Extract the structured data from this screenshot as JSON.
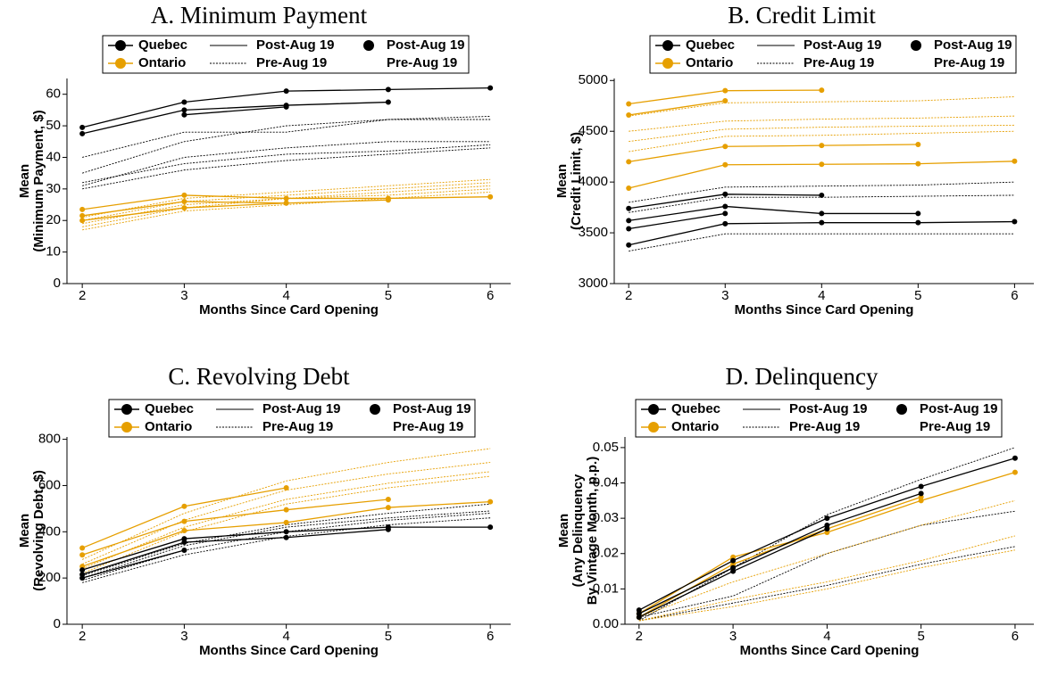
{
  "chart_data": [
    {
      "type": "line",
      "title": "A. Minimum Payment",
      "x_label": "Months Since Card Opening",
      "y_label": [
        "Mean",
        "(Minimum Payment, $)"
      ],
      "x": [
        2,
        3,
        4,
        5,
        6
      ],
      "xlim": [
        1.85,
        6.2
      ],
      "xticks": [
        2,
        3,
        4,
        5,
        6
      ],
      "ylim": [
        0,
        65
      ],
      "yticks": [
        0,
        10,
        20,
        30,
        40,
        50,
        60
      ],
      "legend": {
        "province": [
          {
            "label": "Quebec",
            "color": "#000000"
          },
          {
            "label": "Ontario",
            "color": "#e69f00"
          }
        ],
        "line_style": [
          {
            "label": "Post-Aug 19",
            "dash": "solid"
          },
          {
            "label": "Pre-Aug 19",
            "dash": "dotted"
          }
        ],
        "point": [
          {
            "label": "Post-Aug 19",
            "marker": true
          },
          {
            "label": "Pre-Aug 19",
            "marker": false
          }
        ]
      },
      "series": [
        {
          "color": "#000000",
          "dash": "dotted",
          "markers": false,
          "values": [
            32,
            38,
            41,
            42,
            44
          ]
        },
        {
          "color": "#000000",
          "dash": "dotted",
          "markers": false,
          "values": [
            30,
            36,
            39,
            41,
            43
          ]
        },
        {
          "color": "#000000",
          "dash": "dotted",
          "markers": false,
          "values": [
            40,
            48,
            48,
            52,
            53
          ]
        },
        {
          "color": "#000000",
          "dash": "dotted",
          "markers": false,
          "values": [
            35,
            45,
            50,
            52,
            52
          ]
        },
        {
          "color": "#000000",
          "dash": "dotted",
          "markers": false,
          "values": [
            31,
            40,
            43,
            45,
            45
          ]
        },
        {
          "color": "#e69f00",
          "dash": "dotted",
          "markers": false,
          "values": [
            18,
            24,
            27,
            29,
            31
          ]
        },
        {
          "color": "#e69f00",
          "dash": "dotted",
          "markers": false,
          "values": [
            19,
            25,
            27,
            28,
            30
          ]
        },
        {
          "color": "#e69f00",
          "dash": "dotted",
          "markers": false,
          "values": [
            20,
            26,
            28,
            30,
            32
          ]
        },
        {
          "color": "#e69f00",
          "dash": "dotted",
          "markers": false,
          "values": [
            17,
            23,
            25,
            27,
            29
          ]
        },
        {
          "color": "#e69f00",
          "dash": "dotted",
          "markers": false,
          "values": [
            21,
            27,
            29,
            31,
            33
          ]
        },
        {
          "color": "#000000",
          "dash": "solid",
          "markers": true,
          "values": [
            49.5,
            57.5,
            61,
            61.5,
            62
          ]
        },
        {
          "color": "#000000",
          "dash": "solid",
          "markers": true,
          "values": [
            47.5,
            55,
            56.5,
            57.5,
            null
          ]
        },
        {
          "color": "#000000",
          "dash": "solid",
          "markers": true,
          "values": [
            null,
            53.5,
            56,
            null,
            null
          ]
        },
        {
          "color": "#e69f00",
          "dash": "solid",
          "markers": true,
          "values": [
            23.5,
            28,
            27,
            27,
            27.5
          ]
        },
        {
          "color": "#e69f00",
          "dash": "solid",
          "markers": true,
          "values": [
            21.5,
            26,
            25.5,
            26.5,
            null
          ]
        },
        {
          "color": "#e69f00",
          "dash": "solid",
          "markers": true,
          "values": [
            20,
            24,
            25.5,
            null,
            null
          ]
        }
      ]
    },
    {
      "type": "line",
      "title": "B. Credit Limit",
      "x_label": "Months Since Card Opening",
      "y_label": [
        "Mean",
        "(Credit Limit, $)"
      ],
      "x": [
        2,
        3,
        4,
        5,
        6
      ],
      "xlim": [
        1.85,
        6.2
      ],
      "xticks": [
        2,
        3,
        4,
        5,
        6
      ],
      "ylim": [
        3000,
        5020
      ],
      "yticks": [
        3000,
        3500,
        4000,
        4500,
        5000
      ],
      "legend": {
        "province": [
          {
            "label": "Quebec",
            "color": "#000000"
          },
          {
            "label": "Ontario",
            "color": "#e69f00"
          }
        ],
        "line_style": [
          {
            "label": "Post-Aug 19",
            "dash": "solid"
          },
          {
            "label": "Pre-Aug 19",
            "dash": "dotted"
          }
        ],
        "point": [
          {
            "label": "Post-Aug 19",
            "marker": true
          },
          {
            "label": "Pre-Aug 19",
            "marker": false
          }
        ]
      },
      "series": [
        {
          "color": "#000000",
          "dash": "dotted",
          "markers": false,
          "values": [
            3800,
            3950,
            3960,
            3970,
            4000
          ]
        },
        {
          "color": "#000000",
          "dash": "dotted",
          "markers": false,
          "values": [
            3700,
            3850,
            3850,
            3860,
            3870
          ]
        },
        {
          "color": "#000000",
          "dash": "dotted",
          "markers": false,
          "values": [
            3320,
            3490,
            3490,
            3490,
            3490
          ]
        },
        {
          "color": "#e69f00",
          "dash": "dotted",
          "markers": false,
          "values": [
            4500,
            4600,
            4620,
            4630,
            4650
          ]
        },
        {
          "color": "#e69f00",
          "dash": "dotted",
          "markers": false,
          "values": [
            4400,
            4520,
            4540,
            4550,
            4560
          ]
        },
        {
          "color": "#e69f00",
          "dash": "dotted",
          "markers": false,
          "values": [
            4650,
            4780,
            4790,
            4800,
            4840
          ]
        },
        {
          "color": "#e69f00",
          "dash": "dotted",
          "markers": false,
          "values": [
            4300,
            4450,
            4460,
            4480,
            4500
          ]
        },
        {
          "color": "#e69f00",
          "dash": "solid",
          "markers": true,
          "values": [
            4770,
            4900,
            4905,
            null,
            null
          ]
        },
        {
          "color": "#e69f00",
          "dash": "solid",
          "markers": true,
          "values": [
            4660,
            4800,
            null,
            null,
            null
          ]
        },
        {
          "color": "#e69f00",
          "dash": "solid",
          "markers": true,
          "values": [
            4200,
            4350,
            4360,
            4370,
            null
          ]
        },
        {
          "color": "#e69f00",
          "dash": "solid",
          "markers": true,
          "values": [
            3940,
            4170,
            4175,
            4180,
            4205
          ]
        },
        {
          "color": "#000000",
          "dash": "solid",
          "markers": true,
          "values": [
            3740,
            3880,
            3870,
            null,
            null
          ]
        },
        {
          "color": "#000000",
          "dash": "solid",
          "markers": true,
          "values": [
            3620,
            3760,
            3690,
            3690,
            null
          ]
        },
        {
          "color": "#000000",
          "dash": "solid",
          "markers": true,
          "values": [
            3540,
            3690,
            null,
            null,
            null
          ]
        },
        {
          "color": "#000000",
          "dash": "solid",
          "markers": true,
          "values": [
            3380,
            3590,
            3600,
            3600,
            3610
          ]
        }
      ]
    },
    {
      "type": "line",
      "title": "C. Revolving Debt",
      "x_label": "Months Since Card Opening",
      "y_label": [
        "Mean",
        "(Revolving Debt, $)"
      ],
      "x": [
        2,
        3,
        4,
        5,
        6
      ],
      "xlim": [
        1.85,
        6.2
      ],
      "xticks": [
        2,
        3,
        4,
        5,
        6
      ],
      "ylim": [
        0,
        810
      ],
      "yticks": [
        0,
        200,
        400,
        600,
        800
      ],
      "legend": {
        "province": [
          {
            "label": "Quebec",
            "color": "#000000"
          },
          {
            "label": "Ontario",
            "color": "#e69f00"
          }
        ],
        "line_style": [
          {
            "label": "Post-Aug 19",
            "dash": "solid"
          },
          {
            "label": "Pre-Aug 19",
            "dash": "dotted"
          }
        ],
        "point": [
          {
            "label": "Post-Aug 19",
            "marker": true
          },
          {
            "label": "Pre-Aug 19",
            "marker": false
          }
        ]
      },
      "series": [
        {
          "color": "#e69f00",
          "dash": "dotted",
          "markers": false,
          "values": [
            280,
            480,
            620,
            700,
            760
          ]
        },
        {
          "color": "#e69f00",
          "dash": "dotted",
          "markers": false,
          "values": [
            260,
            450,
            580,
            650,
            700
          ]
        },
        {
          "color": "#e69f00",
          "dash": "dotted",
          "markers": false,
          "values": [
            240,
            420,
            540,
            610,
            660
          ]
        },
        {
          "color": "#e69f00",
          "dash": "dotted",
          "markers": false,
          "values": [
            220,
            400,
            520,
            590,
            640
          ]
        },
        {
          "color": "#000000",
          "dash": "dotted",
          "markers": false,
          "values": [
            200,
            340,
            420,
            460,
            490
          ]
        },
        {
          "color": "#000000",
          "dash": "dotted",
          "markers": false,
          "values": [
            190,
            320,
            400,
            450,
            480
          ]
        },
        {
          "color": "#000000",
          "dash": "dotted",
          "markers": false,
          "values": [
            210,
            350,
            430,
            480,
            520
          ]
        },
        {
          "color": "#000000",
          "dash": "dotted",
          "markers": false,
          "values": [
            180,
            300,
            380,
            430,
            460
          ]
        },
        {
          "color": "#e69f00",
          "dash": "solid",
          "markers": true,
          "values": [
            330,
            510,
            590,
            null,
            null
          ]
        },
        {
          "color": "#e69f00",
          "dash": "solid",
          "markers": true,
          "values": [
            300,
            445,
            495,
            540,
            null
          ]
        },
        {
          "color": "#e69f00",
          "dash": "solid",
          "markers": true,
          "values": [
            250,
            405,
            440,
            505,
            530
          ]
        },
        {
          "color": "#000000",
          "dash": "solid",
          "markers": true,
          "values": [
            235,
            370,
            400,
            420,
            420
          ]
        },
        {
          "color": "#000000",
          "dash": "solid",
          "markers": true,
          "values": [
            215,
            355,
            375,
            410,
            null
          ]
        },
        {
          "color": "#000000",
          "dash": "solid",
          "markers": true,
          "values": [
            200,
            320,
            null,
            null,
            null
          ]
        }
      ]
    },
    {
      "type": "line",
      "title": "D. Delinquency",
      "x_label": "Months Since Card Opening",
      "y_label": [
        "Mean",
        "(Any Delinquency",
        "By Vintage Month, p.p.)"
      ],
      "x": [
        2,
        3,
        4,
        5,
        6
      ],
      "xlim": [
        1.85,
        6.2
      ],
      "xticks": [
        2,
        3,
        4,
        5,
        6
      ],
      "ylim": [
        0,
        0.053
      ],
      "yticks": [
        {
          "value": 0,
          "label": "0.00"
        },
        0.01,
        0.02,
        0.03,
        0.04,
        0.05
      ],
      "legend": {
        "province": [
          {
            "label": "Quebec",
            "color": "#000000"
          },
          {
            "label": "Ontario",
            "color": "#e69f00"
          }
        ],
        "line_style": [
          {
            "label": "Post-Aug 19",
            "dash": "solid"
          },
          {
            "label": "Pre-Aug 19",
            "dash": "dotted"
          }
        ],
        "point": [
          {
            "label": "Post-Aug 19",
            "marker": true
          },
          {
            "label": "Pre-Aug 19",
            "marker": false
          }
        ]
      },
      "series": [
        {
          "color": "#000000",
          "dash": "dotted",
          "markers": false,
          "values": [
            0.001,
            0.006,
            0.011,
            0.017,
            0.022
          ]
        },
        {
          "color": "#000000",
          "dash": "dotted",
          "markers": false,
          "values": [
            0.002,
            0.008,
            0.02,
            0.028,
            0.032
          ]
        },
        {
          "color": "#000000",
          "dash": "dotted",
          "markers": false,
          "values": [
            0.001,
            0.016,
            0.031,
            0.041,
            0.05
          ]
        },
        {
          "color": "#e69f00",
          "dash": "dotted",
          "markers": false,
          "values": [
            0.001,
            0.007,
            0.012,
            0.018,
            0.025
          ]
        },
        {
          "color": "#e69f00",
          "dash": "dotted",
          "markers": false,
          "values": [
            0.002,
            0.012,
            0.02,
            0.028,
            0.035
          ]
        },
        {
          "color": "#e69f00",
          "dash": "dotted",
          "markers": false,
          "values": [
            0.001,
            0.005,
            0.01,
            0.016,
            0.021
          ]
        },
        {
          "color": "#e69f00",
          "dash": "solid",
          "markers": true,
          "values": [
            0.003,
            0.019,
            0.026,
            0.035,
            0.043
          ]
        },
        {
          "color": "#e69f00",
          "dash": "solid",
          "markers": true,
          "values": [
            0.002,
            0.017,
            0.027,
            0.036,
            null
          ]
        },
        {
          "color": "#000000",
          "dash": "solid",
          "markers": true,
          "values": [
            0.004,
            0.018,
            0.03,
            0.039,
            0.047
          ]
        },
        {
          "color": "#000000",
          "dash": "solid",
          "markers": true,
          "values": [
            0.003,
            0.016,
            0.028,
            0.037,
            null
          ]
        },
        {
          "color": "#000000",
          "dash": "solid",
          "markers": true,
          "values": [
            0.002,
            0.015,
            0.027,
            null,
            null
          ]
        }
      ]
    }
  ]
}
